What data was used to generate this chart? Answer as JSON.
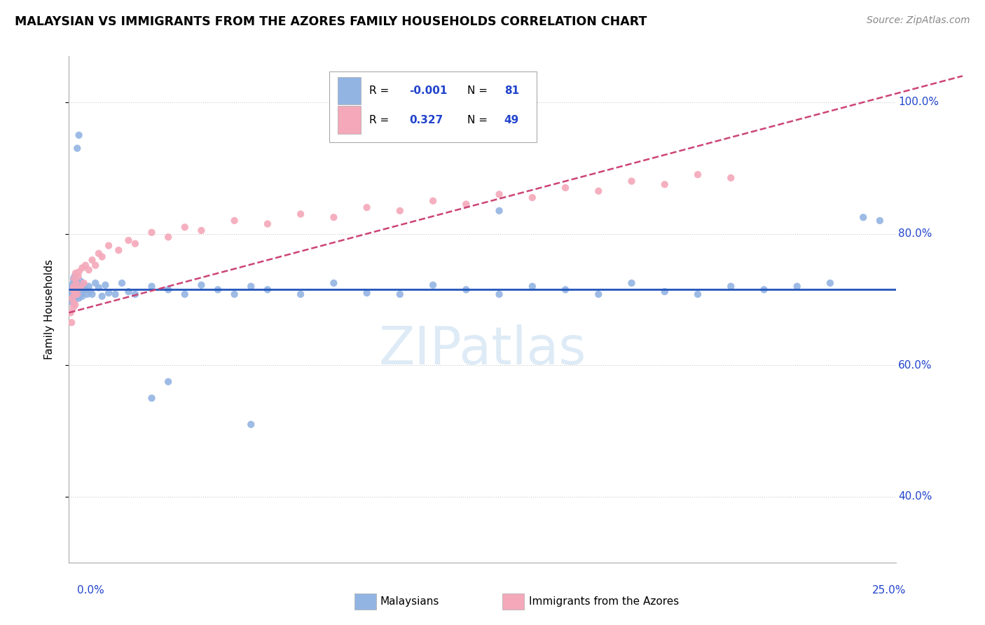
{
  "title": "MALAYSIAN VS IMMIGRANTS FROM THE AZORES FAMILY HOUSEHOLDS CORRELATION CHART",
  "source": "Source: ZipAtlas.com",
  "ylabel": "Family Households",
  "xlim": [
    0.0,
    25.0
  ],
  "ylim": [
    30.0,
    107.0
  ],
  "yticks": [
    40.0,
    60.0,
    80.0,
    100.0
  ],
  "ytick_labels": [
    "40.0%",
    "60.0%",
    "80.0%",
    "100.0%"
  ],
  "malaysian_R": -0.001,
  "malaysian_N": 81,
  "azores_R": 0.327,
  "azores_N": 49,
  "malaysian_color": "#92b4e3",
  "azores_color": "#f4a8ba",
  "trend_blue_color": "#2255bb",
  "trend_pink_color": "#cc4477",
  "legend_R_color": "#2244cc",
  "malaysian_x": [
    0.05,
    0.08,
    0.1,
    0.11,
    0.12,
    0.13,
    0.13,
    0.14,
    0.14,
    0.15,
    0.15,
    0.16,
    0.16,
    0.17,
    0.17,
    0.18,
    0.18,
    0.19,
    0.19,
    0.2,
    0.2,
    0.21,
    0.22,
    0.23,
    0.24,
    0.25,
    0.26,
    0.28,
    0.3,
    0.32,
    0.35,
    0.38,
    0.4,
    0.45,
    0.5,
    0.55,
    0.6,
    0.65,
    0.7,
    0.8,
    0.9,
    1.0,
    1.1,
    1.2,
    1.4,
    1.6,
    1.8,
    2.0,
    2.5,
    3.0,
    3.5,
    4.0,
    4.5,
    5.0,
    5.5,
    6.0,
    7.0,
    8.0,
    9.0,
    10.0,
    11.0,
    12.0,
    13.0,
    14.0,
    15.0,
    16.0,
    17.0,
    18.0,
    19.0,
    20.0,
    21.0,
    22.0,
    23.0,
    24.0,
    24.5,
    2.5,
    5.5,
    13.0,
    3.0,
    0.3,
    0.25
  ],
  "malaysian_y": [
    72.0,
    71.5,
    70.8,
    69.5,
    71.2,
    72.5,
    70.0,
    71.8,
    73.2,
    70.5,
    72.8,
    71.0,
    69.8,
    73.5,
    70.2,
    71.5,
    72.8,
    70.8,
    71.2,
    70.5,
    72.0,
    71.5,
    70.8,
    72.2,
    71.0,
    70.5,
    72.5,
    71.8,
    70.2,
    71.5,
    72.8,
    71.0,
    70.5,
    72.2,
    71.5,
    70.8,
    72.0,
    71.2,
    70.8,
    72.5,
    71.8,
    70.5,
    72.2,
    71.0,
    70.8,
    72.5,
    71.2,
    70.8,
    72.0,
    71.5,
    70.8,
    72.2,
    71.5,
    70.8,
    72.0,
    71.5,
    70.8,
    72.5,
    71.0,
    70.8,
    72.2,
    71.5,
    70.8,
    72.0,
    71.5,
    70.8,
    72.5,
    71.2,
    70.8,
    72.0,
    71.5,
    72.0,
    72.5,
    82.5,
    82.0,
    55.0,
    51.0,
    83.5,
    57.5,
    95.0,
    93.0
  ],
  "azores_x": [
    0.05,
    0.08,
    0.1,
    0.12,
    0.13,
    0.14,
    0.15,
    0.16,
    0.17,
    0.18,
    0.19,
    0.2,
    0.22,
    0.25,
    0.28,
    0.3,
    0.35,
    0.4,
    0.45,
    0.5,
    0.6,
    0.7,
    0.8,
    0.9,
    1.0,
    1.2,
    1.5,
    1.8,
    2.0,
    2.5,
    3.0,
    3.5,
    4.0,
    5.0,
    6.0,
    7.0,
    8.0,
    9.0,
    10.0,
    11.0,
    12.0,
    13.0,
    14.0,
    15.0,
    16.0,
    17.0,
    18.0,
    19.0,
    20.0
  ],
  "azores_y": [
    68.0,
    66.5,
    70.2,
    71.5,
    68.8,
    72.0,
    69.5,
    73.2,
    70.8,
    71.5,
    69.2,
    74.0,
    72.5,
    70.8,
    73.5,
    74.2,
    71.8,
    74.8,
    72.5,
    75.2,
    74.5,
    76.0,
    75.2,
    77.0,
    76.5,
    78.2,
    77.5,
    79.0,
    78.5,
    80.2,
    79.5,
    81.0,
    80.5,
    82.0,
    81.5,
    83.0,
    82.5,
    84.0,
    83.5,
    85.0,
    84.5,
    86.0,
    85.5,
    87.0,
    86.5,
    88.0,
    87.5,
    89.0,
    88.5
  ],
  "grid_color": "#cccccc",
  "grid_style": ":",
  "watermark_color": "#c8dff0",
  "watermark_alpha": 0.6
}
